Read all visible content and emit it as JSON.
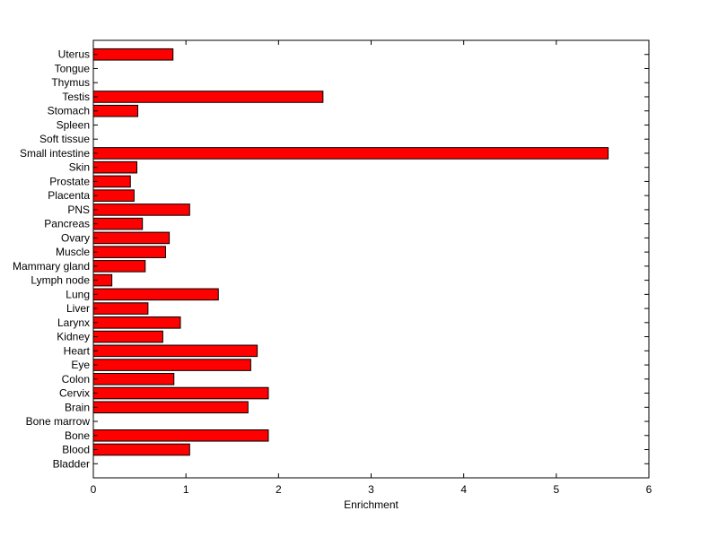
{
  "chart_data": {
    "type": "bar",
    "orientation": "horizontal",
    "title": "",
    "xlabel": "Enrichment",
    "ylabel": "",
    "xlim": [
      0,
      6
    ],
    "xticks": [
      "0",
      "1",
      "2",
      "3",
      "4",
      "5",
      "6"
    ],
    "categories": [
      "Bladder",
      "Blood",
      "Bone",
      "Bone marrow",
      "Brain",
      "Cervix",
      "Colon",
      "Eye",
      "Heart",
      "Kidney",
      "Larynx",
      "Liver",
      "Lung",
      "Lymph node",
      "Mammary gland",
      "Muscle",
      "Ovary",
      "Pancreas",
      "PNS",
      "Placenta",
      "Prostate",
      "Skin",
      "Small intestine",
      "Soft tissue",
      "Spleen",
      "Stomach",
      "Testis",
      "Thymus",
      "Tongue",
      "Uterus"
    ],
    "values": [
      0,
      1.04,
      1.89,
      0,
      1.67,
      1.89,
      0.87,
      1.7,
      1.77,
      0.75,
      0.94,
      0.59,
      1.35,
      0.2,
      0.56,
      0.78,
      0.82,
      0.53,
      1.04,
      0.44,
      0.4,
      0.47,
      5.56,
      0,
      0,
      0.48,
      2.48,
      0,
      0,
      0.86
    ],
    "bar_color": "#ff0000",
    "bar_edge_color": "#000000",
    "grid": false,
    "legend": "none"
  }
}
